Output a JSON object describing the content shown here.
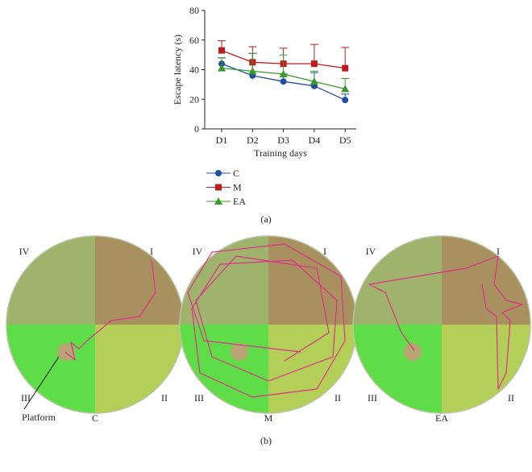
{
  "chart_data": {
    "type": "line",
    "x_label": "Training days",
    "y_label": "Escape latency (s)",
    "categories": [
      "D1",
      "D2",
      "D3",
      "D4",
      "D5"
    ],
    "ylim": [
      0,
      80
    ],
    "yticks": [
      0,
      20,
      40,
      60,
      80
    ],
    "series": [
      {
        "name": "C",
        "color": "#1f4ea0",
        "marker": "circle",
        "values": [
          44,
          36,
          32,
          29,
          19.5
        ],
        "errors": [
          4,
          15,
          5,
          9,
          4
        ]
      },
      {
        "name": "M",
        "color": "#c01a1a",
        "marker": "square",
        "values": [
          53,
          45,
          44,
          44,
          41
        ],
        "errors": [
          6.5,
          10.5,
          10.5,
          13,
          14
        ]
      },
      {
        "name": "EA",
        "color": "#3a9a2a",
        "marker": "triangle",
        "values": [
          41,
          39,
          37,
          32,
          27
        ],
        "errors": [
          7,
          12,
          13,
          7,
          7
        ]
      }
    ]
  },
  "panel_a": {
    "label": "(a)"
  },
  "panel_b": {
    "label": "(b)",
    "panels": [
      {
        "name": "C"
      },
      {
        "name": "M"
      },
      {
        "name": "EA"
      }
    ],
    "quadrants": {
      "I": "I",
      "II": "II",
      "III": "III",
      "IV": "IV"
    },
    "platform_label": "Platform"
  }
}
